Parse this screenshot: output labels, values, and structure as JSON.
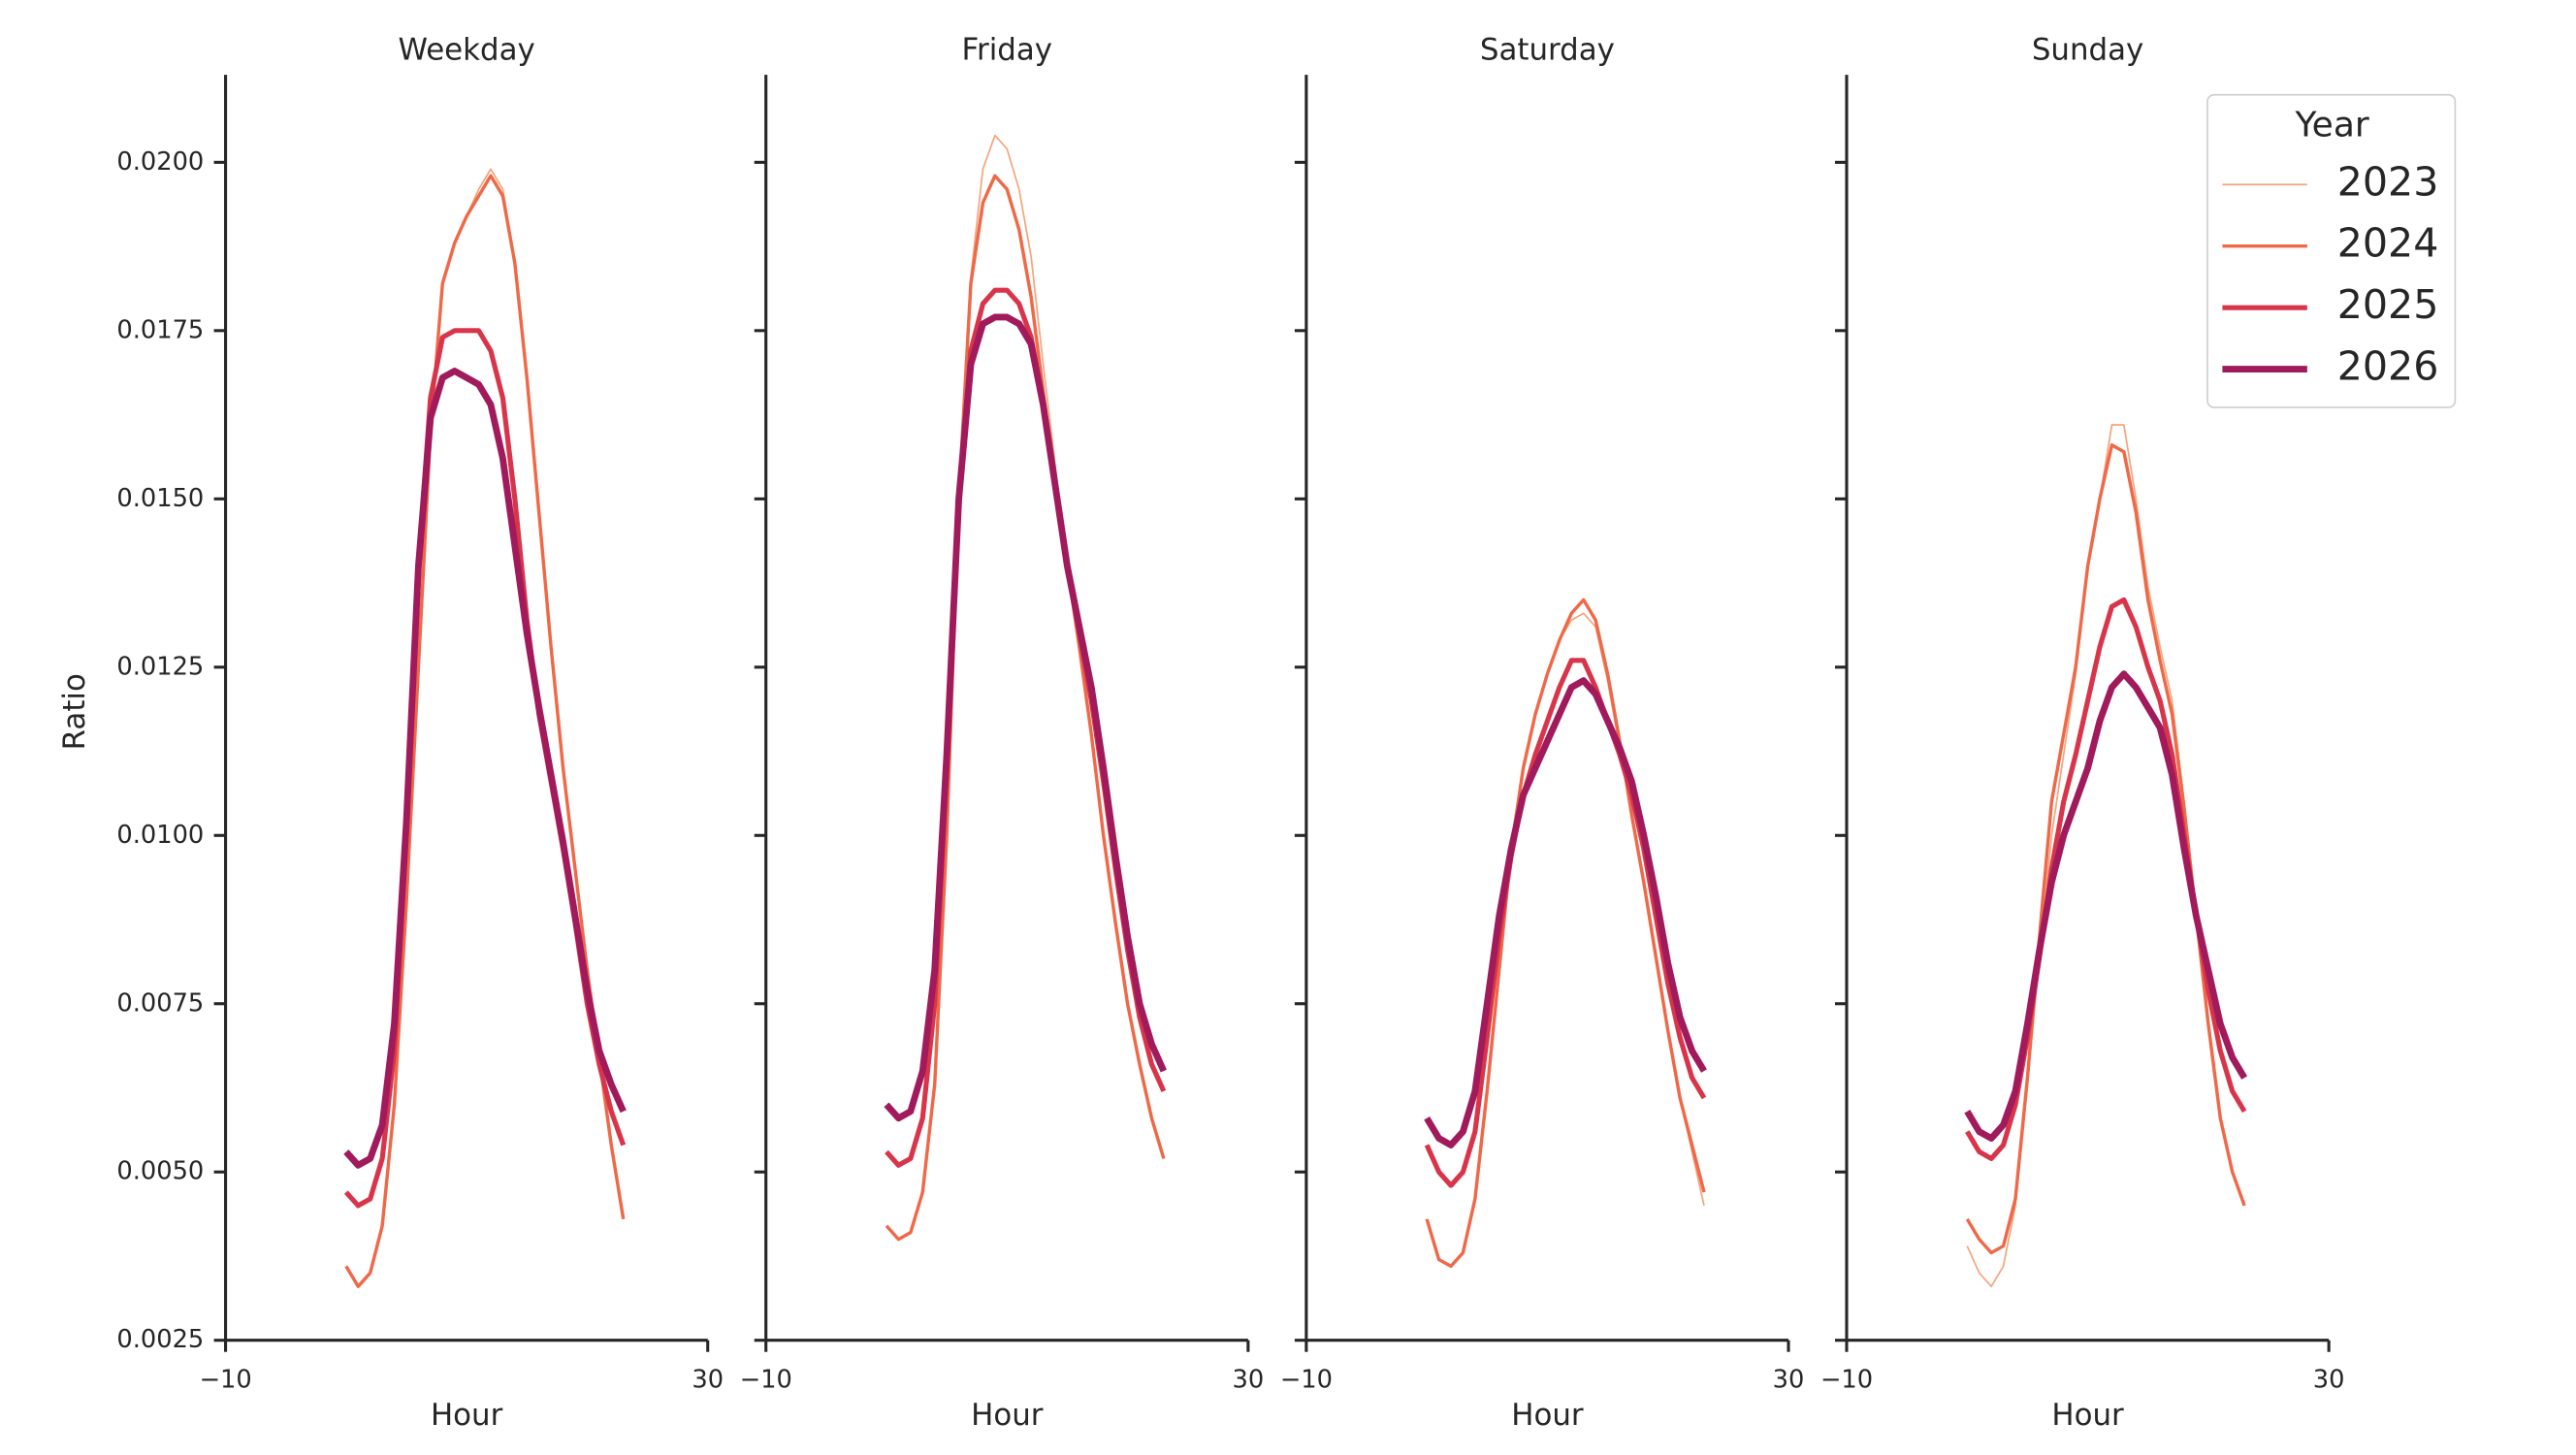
{
  "chart_data": [
    {
      "type": "line",
      "title": "Weekday",
      "xlabel": "Hour",
      "ylabel": "Ratio",
      "x": [
        0,
        1,
        2,
        3,
        4,
        5,
        6,
        7,
        8,
        9,
        10,
        11,
        12,
        13,
        14,
        15,
        16,
        17,
        18,
        19,
        20,
        21,
        22,
        23
      ],
      "xlim": [
        -10,
        30
      ],
      "xticks": [
        {
          "value": -10,
          "label": "−10"
        },
        30
      ],
      "ylim": [
        0.0025,
        0.0213
      ],
      "yticks": [
        {
          "value": 0.0025,
          "label": "0.0025"
        },
        {
          "value": 0.005,
          "label": "0.0050"
        },
        {
          "value": 0.0075,
          "label": "0.0075"
        },
        {
          "value": 0.01,
          "label": "0.0100"
        },
        {
          "value": 0.0125,
          "label": "0.0125"
        },
        {
          "value": 0.015,
          "label": "0.0150"
        },
        {
          "value": 0.0175,
          "label": "0.0175"
        },
        {
          "value": 0.02,
          "label": "0.0200"
        }
      ],
      "series": [
        {
          "name": "2023",
          "color": "#f6a47c",
          "values": [
            0.0036,
            0.0033,
            0.0035,
            0.0042,
            0.006,
            0.009,
            0.0125,
            0.016,
            0.0182,
            0.0188,
            0.0192,
            0.0196,
            0.0199,
            0.0196,
            0.0185,
            0.0168,
            0.0148,
            0.0128,
            0.011,
            0.0095,
            0.008,
            0.0067,
            0.0054,
            0.0043
          ]
        },
        {
          "name": "2024",
          "color": "#ef6848",
          "values": [
            0.0036,
            0.0033,
            0.0035,
            0.0042,
            0.006,
            0.009,
            0.0125,
            0.016,
            0.0182,
            0.0188,
            0.0192,
            0.0195,
            0.0198,
            0.0195,
            0.0185,
            0.0168,
            0.0148,
            0.0128,
            0.011,
            0.0095,
            0.008,
            0.0067,
            0.0054,
            0.0043
          ]
        },
        {
          "name": "2025",
          "color": "#d8344a",
          "values": [
            0.0047,
            0.0045,
            0.0046,
            0.0052,
            0.0068,
            0.01,
            0.014,
            0.0165,
            0.0174,
            0.0175,
            0.0175,
            0.0175,
            0.0172,
            0.0165,
            0.015,
            0.0132,
            0.0118,
            0.0108,
            0.0098,
            0.0087,
            0.0075,
            0.0066,
            0.0059,
            0.0054
          ]
        },
        {
          "name": "2026",
          "color": "#a11a5b",
          "values": [
            0.0053,
            0.0051,
            0.0052,
            0.0057,
            0.0072,
            0.0102,
            0.014,
            0.0162,
            0.0168,
            0.0169,
            0.0168,
            0.0167,
            0.0164,
            0.0156,
            0.0143,
            0.013,
            0.0119,
            0.0109,
            0.0099,
            0.0088,
            0.0077,
            0.0068,
            0.0063,
            0.0059
          ]
        }
      ]
    },
    {
      "type": "line",
      "title": "Friday",
      "xlabel": "Hour",
      "x": [
        0,
        1,
        2,
        3,
        4,
        5,
        6,
        7,
        8,
        9,
        10,
        11,
        12,
        13,
        14,
        15,
        16,
        17,
        18,
        19,
        20,
        21,
        22,
        23
      ],
      "xlim": [
        -10,
        30
      ],
      "xticks": [
        {
          "value": -10,
          "label": "−10"
        },
        30
      ],
      "ylim": [
        0.0025,
        0.0213
      ],
      "yticks": [
        0.0025,
        0.005,
        0.0075,
        0.01,
        0.0125,
        0.015,
        0.0175,
        0.02
      ],
      "series": [
        {
          "name": "2023",
          "color": "#f6a47c",
          "values": [
            0.0042,
            0.004,
            0.0041,
            0.0047,
            0.0063,
            0.01,
            0.015,
            0.0183,
            0.0199,
            0.0204,
            0.0202,
            0.0196,
            0.0186,
            0.017,
            0.0155,
            0.014,
            0.0128,
            0.0115,
            0.01,
            0.0087,
            0.0075,
            0.0066,
            0.0058,
            0.0052
          ]
        },
        {
          "name": "2024",
          "color": "#ef6848",
          "values": [
            0.0042,
            0.004,
            0.0041,
            0.0047,
            0.0063,
            0.01,
            0.015,
            0.0182,
            0.0194,
            0.0198,
            0.0196,
            0.019,
            0.018,
            0.0166,
            0.0152,
            0.014,
            0.0128,
            0.0115,
            0.01,
            0.0087,
            0.0075,
            0.0066,
            0.0058,
            0.0052
          ]
        },
        {
          "name": "2025",
          "color": "#d8344a",
          "values": [
            0.0053,
            0.0051,
            0.0052,
            0.0058,
            0.0075,
            0.011,
            0.015,
            0.0172,
            0.0179,
            0.0181,
            0.0181,
            0.0179,
            0.0174,
            0.0164,
            0.0152,
            0.014,
            0.013,
            0.012,
            0.0108,
            0.0095,
            0.0083,
            0.0073,
            0.0066,
            0.0062
          ]
        },
        {
          "name": "2026",
          "color": "#a11a5b",
          "values": [
            0.006,
            0.0058,
            0.0059,
            0.0065,
            0.008,
            0.0112,
            0.015,
            0.017,
            0.0176,
            0.0177,
            0.0177,
            0.0176,
            0.0173,
            0.0164,
            0.0152,
            0.014,
            0.0131,
            0.0122,
            0.011,
            0.0097,
            0.0085,
            0.0075,
            0.0069,
            0.0065
          ]
        }
      ]
    },
    {
      "type": "line",
      "title": "Saturday",
      "xlabel": "Hour",
      "x": [
        0,
        1,
        2,
        3,
        4,
        5,
        6,
        7,
        8,
        9,
        10,
        11,
        12,
        13,
        14,
        15,
        16,
        17,
        18,
        19,
        20,
        21,
        22,
        23
      ],
      "xlim": [
        -10,
        30
      ],
      "xticks": [
        {
          "value": -10,
          "label": "−10"
        },
        30
      ],
      "ylim": [
        0.0025,
        0.0213
      ],
      "yticks": [
        0.0025,
        0.005,
        0.0075,
        0.01,
        0.0125,
        0.015,
        0.0175,
        0.02
      ],
      "series": [
        {
          "name": "2023",
          "color": "#f6a47c",
          "values": [
            0.0043,
            0.0037,
            0.0036,
            0.0038,
            0.0046,
            0.0062,
            0.008,
            0.0098,
            0.011,
            0.0118,
            0.0124,
            0.0129,
            0.0132,
            0.0133,
            0.0131,
            0.0123,
            0.0113,
            0.0103,
            0.0093,
            0.0082,
            0.0071,
            0.0061,
            0.0053,
            0.0045
          ]
        },
        {
          "name": "2024",
          "color": "#ef6848",
          "values": [
            0.0043,
            0.0037,
            0.0036,
            0.0038,
            0.0046,
            0.0062,
            0.008,
            0.0098,
            0.011,
            0.0118,
            0.0124,
            0.0129,
            0.0133,
            0.0135,
            0.0132,
            0.0124,
            0.0114,
            0.0103,
            0.0093,
            0.0082,
            0.0071,
            0.0061,
            0.0054,
            0.0047
          ]
        },
        {
          "name": "2025",
          "color": "#d8344a",
          "values": [
            0.0054,
            0.005,
            0.0048,
            0.005,
            0.0056,
            0.007,
            0.0085,
            0.0097,
            0.0106,
            0.0112,
            0.0117,
            0.0122,
            0.0126,
            0.0126,
            0.0122,
            0.0117,
            0.0112,
            0.0106,
            0.0098,
            0.0088,
            0.0078,
            0.007,
            0.0064,
            0.0061
          ]
        },
        {
          "name": "2026",
          "color": "#a11a5b",
          "values": [
            0.0058,
            0.0055,
            0.0054,
            0.0056,
            0.0062,
            0.0075,
            0.0088,
            0.0098,
            0.0106,
            0.011,
            0.0114,
            0.0118,
            0.0122,
            0.0123,
            0.0121,
            0.0117,
            0.0113,
            0.0108,
            0.01,
            0.0091,
            0.0081,
            0.0073,
            0.0068,
            0.0065
          ]
        }
      ]
    },
    {
      "type": "line",
      "title": "Sunday",
      "xlabel": "Hour",
      "legend_title": "Year",
      "x": [
        0,
        1,
        2,
        3,
        4,
        5,
        6,
        7,
        8,
        9,
        10,
        11,
        12,
        13,
        14,
        15,
        16,
        17,
        18,
        19,
        20,
        21,
        22,
        23
      ],
      "xlim": [
        -10,
        30
      ],
      "xticks": [
        {
          "value": -10,
          "label": "−10"
        },
        30
      ],
      "ylim": [
        0.0025,
        0.0213
      ],
      "yticks": [
        0.0025,
        0.005,
        0.0075,
        0.01,
        0.0125,
        0.015,
        0.0175,
        0.02
      ],
      "series": [
        {
          "name": "2023",
          "color": "#f6a47c",
          "values": [
            0.0039,
            0.0035,
            0.0033,
            0.0036,
            0.0045,
            0.0063,
            0.0082,
            0.01,
            0.0112,
            0.0124,
            0.014,
            0.015,
            0.0161,
            0.0161,
            0.015,
            0.0137,
            0.0128,
            0.012,
            0.0105,
            0.0088,
            0.0072,
            0.0058,
            0.005,
            0.0045
          ]
        },
        {
          "name": "2024",
          "color": "#ef6848",
          "values": [
            0.0043,
            0.004,
            0.0038,
            0.0039,
            0.0046,
            0.0064,
            0.0085,
            0.0105,
            0.0115,
            0.0125,
            0.014,
            0.015,
            0.0158,
            0.0157,
            0.0148,
            0.0135,
            0.0126,
            0.0118,
            0.0104,
            0.0088,
            0.0072,
            0.0058,
            0.005,
            0.0045
          ]
        },
        {
          "name": "2025",
          "color": "#d8344a",
          "values": [
            0.0056,
            0.0053,
            0.0052,
            0.0054,
            0.006,
            0.007,
            0.0082,
            0.0095,
            0.0105,
            0.0112,
            0.012,
            0.0128,
            0.0134,
            0.0135,
            0.0131,
            0.0125,
            0.012,
            0.0112,
            0.01,
            0.0088,
            0.0077,
            0.0068,
            0.0062,
            0.0059
          ]
        },
        {
          "name": "2026",
          "color": "#a11a5b",
          "values": [
            0.0059,
            0.0056,
            0.0055,
            0.0057,
            0.0062,
            0.0072,
            0.0083,
            0.0093,
            0.01,
            0.0105,
            0.011,
            0.0117,
            0.0122,
            0.0124,
            0.0122,
            0.0119,
            0.0116,
            0.0109,
            0.0098,
            0.0088,
            0.008,
            0.0072,
            0.0067,
            0.0064
          ]
        }
      ]
    }
  ]
}
